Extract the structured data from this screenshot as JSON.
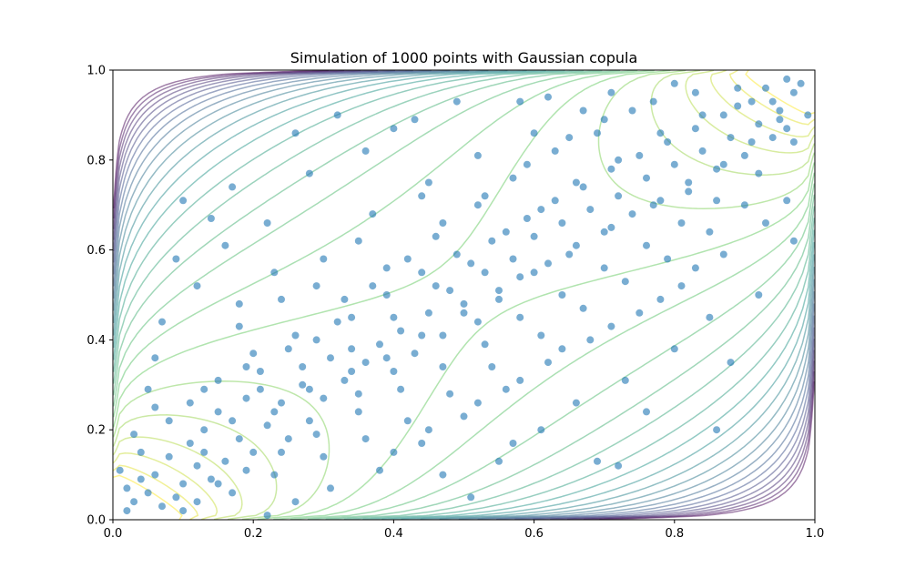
{
  "chart_data": {
    "type": "scatter",
    "title": "Simulation of 1000 points with Gaussian copula",
    "xlabel": "",
    "ylabel": "",
    "xlim": [
      0.0,
      1.0
    ],
    "ylim": [
      0.0,
      1.0
    ],
    "xticks": [
      "0.0",
      "0.2",
      "0.4",
      "0.6",
      "0.8",
      "1.0"
    ],
    "yticks": [
      "0.0",
      "0.2",
      "0.4",
      "0.6",
      "0.8",
      "1.0"
    ],
    "grid": false,
    "legend": "none",
    "n_points": 1000,
    "point_color": "#1f77b4",
    "point_alpha": 0.6,
    "contour": {
      "description": "density contours of a Gaussian copula",
      "correlation": 0.5,
      "colormap": [
        "#440154",
        "#3b528b",
        "#21918c",
        "#5ec962",
        "#fde725"
      ],
      "alpha": 0.5
    },
    "series": [
      {
        "points": [
          [
            0.05,
            0.06
          ],
          [
            0.07,
            0.03
          ],
          [
            0.04,
            0.09
          ],
          [
            0.09,
            0.05
          ],
          [
            0.03,
            0.04
          ],
          [
            0.06,
            0.1
          ],
          [
            0.1,
            0.08
          ],
          [
            0.12,
            0.12
          ],
          [
            0.08,
            0.14
          ],
          [
            0.14,
            0.09
          ],
          [
            0.02,
            0.02
          ],
          [
            0.11,
            0.17
          ],
          [
            0.16,
            0.13
          ],
          [
            0.13,
            0.2
          ],
          [
            0.18,
            0.18
          ],
          [
            0.2,
            0.15
          ],
          [
            0.15,
            0.24
          ],
          [
            0.22,
            0.21
          ],
          [
            0.25,
            0.18
          ],
          [
            0.19,
            0.27
          ],
          [
            0.24,
            0.26
          ],
          [
            0.28,
            0.22
          ],
          [
            0.27,
            0.3
          ],
          [
            0.3,
            0.27
          ],
          [
            0.21,
            0.33
          ],
          [
            0.33,
            0.31
          ],
          [
            0.31,
            0.36
          ],
          [
            0.35,
            0.28
          ],
          [
            0.36,
            0.35
          ],
          [
            0.29,
            0.4
          ],
          [
            0.38,
            0.39
          ],
          [
            0.4,
            0.33
          ],
          [
            0.41,
            0.42
          ],
          [
            0.34,
            0.45
          ],
          [
            0.43,
            0.37
          ],
          [
            0.45,
            0.46
          ],
          [
            0.39,
            0.5
          ],
          [
            0.47,
            0.41
          ],
          [
            0.48,
            0.51
          ],
          [
            0.44,
            0.55
          ],
          [
            0.5,
            0.48
          ],
          [
            0.52,
            0.44
          ],
          [
            0.53,
            0.55
          ],
          [
            0.49,
            0.59
          ],
          [
            0.55,
            0.51
          ],
          [
            0.57,
            0.58
          ],
          [
            0.54,
            0.62
          ],
          [
            0.58,
            0.54
          ],
          [
            0.6,
            0.63
          ],
          [
            0.62,
            0.57
          ],
          [
            0.59,
            0.67
          ],
          [
            0.64,
            0.66
          ],
          [
            0.66,
            0.61
          ],
          [
            0.63,
            0.71
          ],
          [
            0.68,
            0.69
          ],
          [
            0.7,
            0.64
          ],
          [
            0.67,
            0.74
          ],
          [
            0.72,
            0.72
          ],
          [
            0.74,
            0.68
          ],
          [
            0.71,
            0.78
          ],
          [
            0.76,
            0.76
          ],
          [
            0.78,
            0.71
          ],
          [
            0.75,
            0.81
          ],
          [
            0.8,
            0.79
          ],
          [
            0.82,
            0.75
          ],
          [
            0.79,
            0.84
          ],
          [
            0.84,
            0.82
          ],
          [
            0.86,
            0.78
          ],
          [
            0.83,
            0.87
          ],
          [
            0.88,
            0.85
          ],
          [
            0.9,
            0.81
          ],
          [
            0.87,
            0.9
          ],
          [
            0.92,
            0.88
          ],
          [
            0.94,
            0.85
          ],
          [
            0.91,
            0.93
          ],
          [
            0.95,
            0.91
          ],
          [
            0.97,
            0.95
          ],
          [
            0.93,
            0.96
          ],
          [
            0.96,
            0.98
          ],
          [
            0.98,
            0.97
          ],
          [
            0.1,
            0.71
          ],
          [
            0.32,
            0.9
          ],
          [
            0.43,
            0.89
          ],
          [
            0.49,
            0.93
          ],
          [
            0.26,
            0.86
          ],
          [
            0.17,
            0.74
          ],
          [
            0.14,
            0.67
          ],
          [
            0.09,
            0.58
          ],
          [
            0.22,
            0.01
          ],
          [
            0.51,
            0.05
          ],
          [
            0.55,
            0.13
          ],
          [
            0.69,
            0.13
          ],
          [
            0.72,
            0.12
          ],
          [
            0.76,
            0.24
          ],
          [
            0.86,
            0.2
          ],
          [
            0.88,
            0.35
          ],
          [
            0.97,
            0.62
          ],
          [
            0.96,
            0.71
          ],
          [
            0.92,
            0.5
          ],
          [
            0.85,
            0.45
          ],
          [
            0.8,
            0.38
          ],
          [
            0.73,
            0.31
          ],
          [
            0.66,
            0.26
          ],
          [
            0.61,
            0.2
          ],
          [
            0.57,
            0.17
          ],
          [
            0.47,
            0.1
          ],
          [
            0.38,
            0.11
          ],
          [
            0.31,
            0.07
          ],
          [
            0.26,
            0.04
          ],
          [
            0.05,
            0.29
          ],
          [
            0.06,
            0.36
          ],
          [
            0.07,
            0.44
          ],
          [
            0.12,
            0.52
          ],
          [
            0.16,
            0.61
          ],
          [
            0.22,
            0.66
          ],
          [
            0.28,
            0.77
          ],
          [
            0.36,
            0.82
          ],
          [
            0.4,
            0.87
          ],
          [
            0.58,
            0.93
          ],
          [
            0.62,
            0.94
          ],
          [
            0.71,
            0.95
          ],
          [
            0.8,
            0.97
          ],
          [
            0.45,
            0.75
          ],
          [
            0.37,
            0.68
          ],
          [
            0.3,
            0.58
          ],
          [
            0.24,
            0.49
          ],
          [
            0.18,
            0.43
          ],
          [
            0.2,
            0.37
          ],
          [
            0.26,
            0.41
          ],
          [
            0.33,
            0.49
          ],
          [
            0.39,
            0.56
          ],
          [
            0.46,
            0.63
          ],
          [
            0.52,
            0.7
          ],
          [
            0.57,
            0.76
          ],
          [
            0.63,
            0.82
          ],
          [
            0.69,
            0.86
          ],
          [
            0.74,
            0.91
          ],
          [
            0.54,
            0.34
          ],
          [
            0.61,
            0.41
          ],
          [
            0.67,
            0.47
          ],
          [
            0.73,
            0.53
          ],
          [
            0.79,
            0.58
          ],
          [
            0.85,
            0.64
          ],
          [
            0.9,
            0.7
          ],
          [
            0.48,
            0.28
          ],
          [
            0.42,
            0.22
          ],
          [
            0.36,
            0.18
          ],
          [
            0.3,
            0.14
          ],
          [
            0.23,
            0.1
          ],
          [
            0.17,
            0.06
          ],
          [
            0.12,
            0.04
          ],
          [
            0.44,
            0.17
          ],
          [
            0.5,
            0.23
          ],
          [
            0.56,
            0.29
          ],
          [
            0.62,
            0.35
          ],
          [
            0.68,
            0.4
          ],
          [
            0.75,
            0.46
          ],
          [
            0.81,
            0.52
          ],
          [
            0.87,
            0.59
          ],
          [
            0.93,
            0.66
          ],
          [
            0.08,
            0.22
          ],
          [
            0.13,
            0.29
          ],
          [
            0.19,
            0.34
          ],
          [
            0.25,
            0.38
          ],
          [
            0.32,
            0.44
          ],
          [
            0.37,
            0.52
          ],
          [
            0.42,
            0.58
          ],
          [
            0.47,
            0.66
          ],
          [
            0.53,
            0.72
          ],
          [
            0.59,
            0.79
          ],
          [
            0.65,
            0.85
          ],
          [
            0.7,
            0.89
          ],
          [
            0.77,
            0.93
          ],
          [
            0.83,
            0.95
          ],
          [
            0.89,
            0.96
          ],
          [
            0.94,
            0.93
          ],
          [
            0.04,
            0.15
          ],
          [
            0.03,
            0.19
          ],
          [
            0.06,
            0.25
          ],
          [
            0.11,
            0.26
          ],
          [
            0.15,
            0.31
          ],
          [
            0.21,
            0.29
          ],
          [
            0.27,
            0.34
          ],
          [
            0.34,
            0.38
          ],
          [
            0.4,
            0.45
          ],
          [
            0.46,
            0.52
          ],
          [
            0.51,
            0.57
          ],
          [
            0.56,
            0.64
          ],
          [
            0.61,
            0.69
          ],
          [
            0.66,
            0.75
          ],
          [
            0.72,
            0.8
          ],
          [
            0.78,
            0.86
          ],
          [
            0.84,
            0.9
          ],
          [
            0.89,
            0.92
          ],
          [
            0.95,
            0.89
          ],
          [
            0.97,
            0.84
          ],
          [
            0.99,
            0.9
          ],
          [
            0.92,
            0.77
          ],
          [
            0.86,
            0.71
          ],
          [
            0.81,
            0.66
          ],
          [
            0.76,
            0.61
          ],
          [
            0.7,
            0.56
          ],
          [
            0.64,
            0.5
          ],
          [
            0.58,
            0.45
          ],
          [
            0.53,
            0.39
          ],
          [
            0.47,
            0.34
          ],
          [
            0.41,
            0.29
          ],
          [
            0.35,
            0.24
          ],
          [
            0.29,
            0.19
          ],
          [
            0.24,
            0.15
          ],
          [
            0.19,
            0.11
          ],
          [
            0.15,
            0.08
          ],
          [
            0.1,
            0.02
          ],
          [
            0.01,
            0.11
          ],
          [
            0.02,
            0.07
          ],
          [
            0.13,
            0.15
          ],
          [
            0.17,
            0.22
          ],
          [
            0.23,
            0.24
          ],
          [
            0.28,
            0.29
          ],
          [
            0.34,
            0.33
          ],
          [
            0.39,
            0.36
          ],
          [
            0.44,
            0.41
          ],
          [
            0.5,
            0.46
          ],
          [
            0.55,
            0.49
          ],
          [
            0.6,
            0.55
          ],
          [
            0.65,
            0.59
          ],
          [
            0.71,
            0.65
          ],
          [
            0.77,
            0.7
          ],
          [
            0.82,
            0.73
          ],
          [
            0.87,
            0.79
          ],
          [
            0.91,
            0.84
          ],
          [
            0.96,
            0.87
          ],
          [
            0.35,
            0.62
          ],
          [
            0.29,
            0.52
          ],
          [
            0.44,
            0.72
          ],
          [
            0.52,
            0.81
          ],
          [
            0.6,
            0.86
          ],
          [
            0.67,
            0.91
          ],
          [
            0.23,
            0.55
          ],
          [
            0.18,
            0.48
          ],
          [
            0.64,
            0.38
          ],
          [
            0.71,
            0.43
          ],
          [
            0.78,
            0.49
          ],
          [
            0.83,
            0.56
          ],
          [
            0.58,
            0.31
          ],
          [
            0.52,
            0.26
          ],
          [
            0.45,
            0.2
          ],
          [
            0.4,
            0.15
          ]
        ]
      }
    ]
  }
}
